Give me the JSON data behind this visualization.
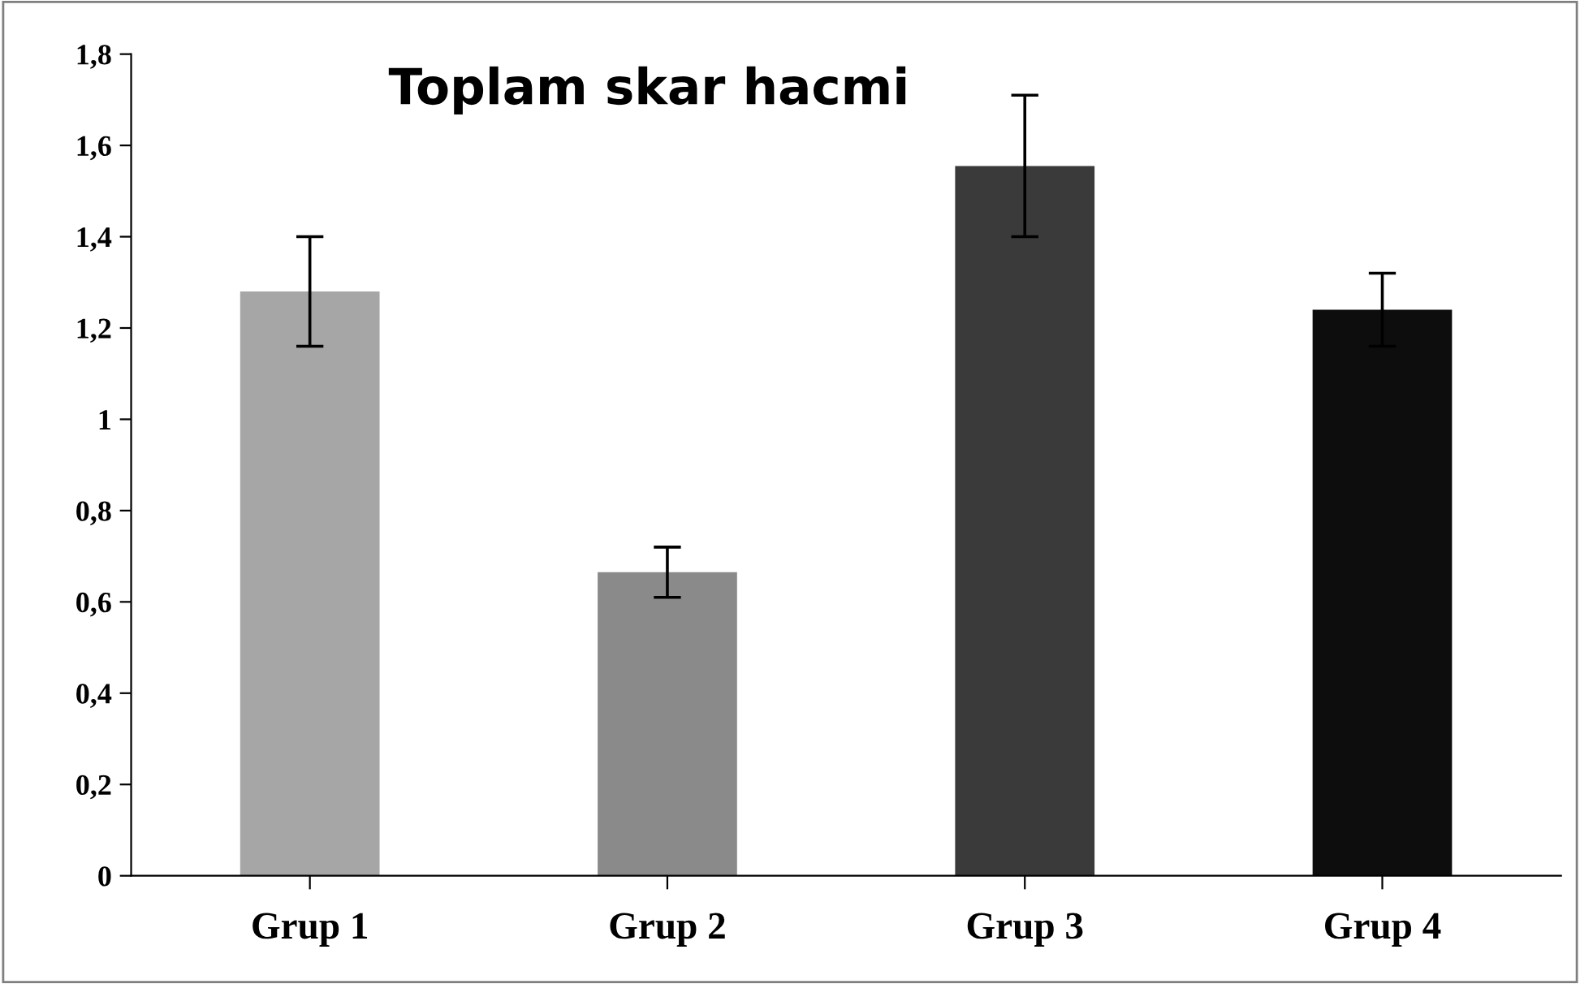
{
  "chart_data": {
    "type": "bar",
    "title": "Toplam skar hacmi",
    "categories": [
      "Grup 1",
      "Grup 2",
      "Grup 3",
      "Grup 4"
    ],
    "values": [
      1.28,
      0.665,
      1.555,
      1.24
    ],
    "errors": [
      0.12,
      0.055,
      0.155,
      0.08
    ],
    "colors": [
      "#a6a6a6",
      "#8a8a8a",
      "#3a3a3a",
      "#0d0d0d"
    ],
    "ylim": [
      0,
      1.8
    ],
    "yticks": [
      0,
      {
        "value": 0.2,
        "label": "0,2"
      },
      {
        "value": 0.4,
        "label": "0,4"
      },
      {
        "value": 0.6,
        "label": "0,6"
      },
      {
        "value": 0.8,
        "label": "0,8"
      },
      1,
      {
        "value": 1.2,
        "label": "1,2"
      },
      {
        "value": 1.4,
        "label": "1,4"
      },
      {
        "value": 1.6,
        "label": "1,6"
      },
      {
        "value": 1.8,
        "label": "1,8"
      }
    ],
    "grid": false
  }
}
